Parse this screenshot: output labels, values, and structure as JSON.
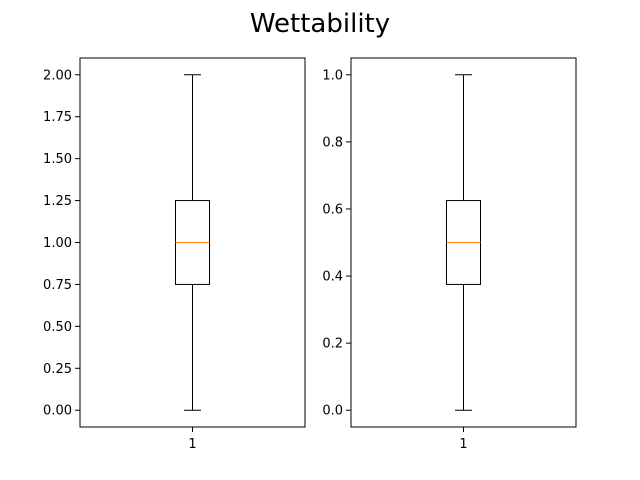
{
  "figure": {
    "title": "Wettability"
  },
  "chart_data": [
    {
      "type": "box",
      "title": "",
      "xlabel": "",
      "ylabel": "",
      "categories": [
        "1"
      ],
      "ylim": [
        -0.1,
        2.1
      ],
      "yticks": [
        "0.00",
        "0.25",
        "0.50",
        "0.75",
        "1.00",
        "1.25",
        "1.50",
        "1.75",
        "2.00"
      ],
      "ytick_values": [
        0,
        0.25,
        0.5,
        0.75,
        1.0,
        1.25,
        1.5,
        1.75,
        2.0
      ],
      "box": {
        "whisker_low": 0.0,
        "q1": 0.75,
        "median": 1.0,
        "q3": 1.25,
        "whisker_high": 2.0
      },
      "grid": false,
      "colors": {
        "box": "#000000",
        "median": "#ff7f0e"
      }
    },
    {
      "type": "box",
      "title": "",
      "xlabel": "",
      "ylabel": "",
      "categories": [
        "1"
      ],
      "ylim": [
        -0.05,
        1.05
      ],
      "yticks": [
        "0.0",
        "0.2",
        "0.4",
        "0.6",
        "0.8",
        "1.0"
      ],
      "ytick_values": [
        0,
        0.2,
        0.4,
        0.6,
        0.8,
        1.0
      ],
      "box": {
        "whisker_low": 0.0,
        "q1": 0.375,
        "median": 0.5,
        "q3": 0.625,
        "whisker_high": 1.0
      },
      "grid": false,
      "colors": {
        "box": "#000000",
        "median": "#ff7f0e"
      }
    }
  ]
}
